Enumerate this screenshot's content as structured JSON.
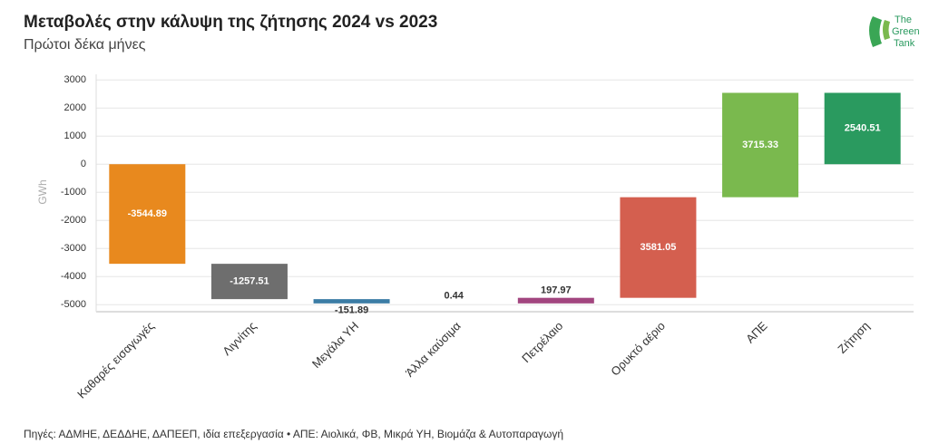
{
  "chart_data": {
    "type": "waterfall",
    "title": "Μεταβολές στην κάλυψη της ζήτησης 2024 vs 2023",
    "subtitle": "Πρώτοι δέκα μήνες",
    "y_label": "GWh",
    "categories": [
      "Καθαρές εισαγωγές",
      "Λιγνίτης",
      "Μεγάλα ΥΗ",
      "Άλλα καύσιμα",
      "Πετρέλαιο",
      "Ορυκτό αέριο",
      "ΑΠΕ",
      "Ζήτηση"
    ],
    "values": [
      -3544.89,
      -1257.51,
      -151.89,
      0.44,
      197.97,
      3581.05,
      3715.33,
      2540.51
    ],
    "colors": [
      "#e8891e",
      "#6e6e6e",
      "#3b7ca5",
      "#8a8a8a",
      "#a2457f",
      "#d45f4f",
      "#7ab94e",
      "#2a9a5f"
    ],
    "ylim": [
      -5250,
      3200
    ],
    "yticks": [
      -5000,
      -4000,
      -3000,
      -2000,
      -1000,
      0,
      1000,
      2000,
      3000
    ],
    "grid": true,
    "source": "Πηγές: ΑΔΜΗΕ, ΔΕΔΔΗΕ, ΔΑΠΕΕΠ, ιδία επεξεργασία • ΑΠΕ: Αιολικά, ΦΒ, Μικρά ΥΗ, Βιομάζα & Αυτοπαραγωγή"
  },
  "logo": [
    "The",
    "Green",
    "Tank"
  ]
}
